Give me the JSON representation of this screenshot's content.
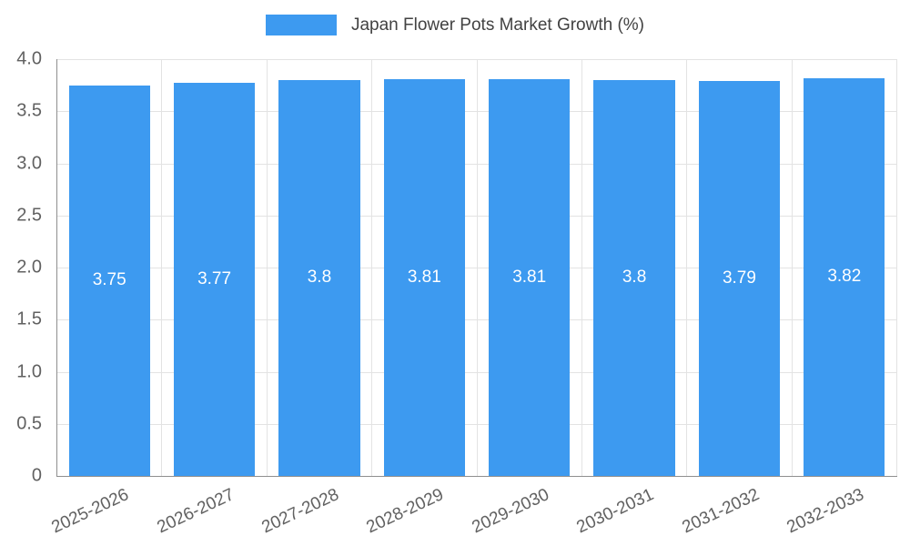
{
  "chart_data": {
    "type": "bar",
    "title": "Japan Flower Pots Market Growth (%)",
    "categories": [
      "2025-2026",
      "2026-2027",
      "2027-2028",
      "2028-2029",
      "2029-2030",
      "2030-2031",
      "2031-2032",
      "2032-2033"
    ],
    "values": [
      3.75,
      3.77,
      3.8,
      3.81,
      3.81,
      3.8,
      3.79,
      3.82
    ],
    "value_labels": [
      "3.75",
      "3.77",
      "3.8",
      "3.81",
      "3.81",
      "3.8",
      "3.79",
      "3.82"
    ],
    "xlabel": "",
    "ylabel": "",
    "ylim": [
      0,
      4
    ],
    "yticks": [
      "4.0",
      "3.5",
      "3.0",
      "2.5",
      "2.0",
      "1.5",
      "1.0",
      "0.5",
      "0"
    ],
    "ytick_values": [
      4,
      3.5,
      3,
      2.5,
      2,
      1.5,
      1,
      0.5,
      0
    ],
    "grid": true,
    "legend_position": "top",
    "bar_color": "#3D9AF0",
    "label_color": "#ffffff",
    "axis_text_color": "#616161",
    "legend_text_color": "#424242"
  }
}
